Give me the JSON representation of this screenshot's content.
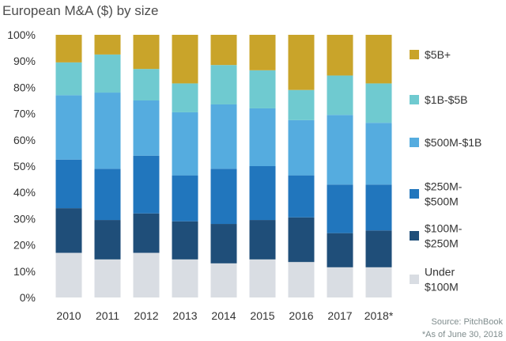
{
  "chart_data": {
    "type": "bar",
    "stacked": true,
    "title": "European M&A ($) by size",
    "xlabel": "",
    "ylabel": "",
    "ylim": [
      0,
      100
    ],
    "y_ticks": [
      "0%",
      "10%",
      "20%",
      "30%",
      "40%",
      "50%",
      "60%",
      "70%",
      "80%",
      "90%",
      "100%"
    ],
    "categories": [
      "2010",
      "2011",
      "2012",
      "2013",
      "2014",
      "2015",
      "2016",
      "2017",
      "2018*"
    ],
    "series": [
      {
        "name": "Under $100M",
        "legend_lines": [
          "Under",
          "$100M"
        ],
        "color": "#d9dde3",
        "values": [
          17,
          14.5,
          17,
          14.5,
          13,
          14.5,
          13.5,
          11.5,
          11.5
        ]
      },
      {
        "name": "$100M-$250M",
        "legend_lines": [
          "$100M-",
          "$250M"
        ],
        "color": "#1f4e79",
        "values": [
          17,
          15,
          15,
          14.5,
          15,
          15,
          17,
          13,
          14
        ]
      },
      {
        "name": "$250M-$500M",
        "legend_lines": [
          "$250M-",
          "$500M"
        ],
        "color": "#2176bd",
        "values": [
          18.5,
          19.5,
          22,
          17.5,
          21,
          20.5,
          16,
          18.5,
          17.5
        ]
      },
      {
        "name": "$500M-$1B",
        "legend_lines": [
          "$500M-$1B"
        ],
        "color": "#55acdf",
        "values": [
          24.5,
          29,
          21,
          24,
          24.5,
          22,
          21,
          26.5,
          23.5
        ]
      },
      {
        "name": "$1B-$5B",
        "legend_lines": [
          "$1B-$5B"
        ],
        "color": "#6fcad0",
        "values": [
          12.5,
          14.5,
          12,
          11,
          15,
          14.5,
          11.5,
          15,
          15
        ]
      },
      {
        "name": "$5B+",
        "legend_lines": [
          "$5B+"
        ],
        "color": "#c9a42a",
        "values": [
          10.5,
          7.5,
          13,
          18.5,
          11.5,
          13.5,
          21,
          15.5,
          18.5
        ]
      }
    ],
    "grid": false,
    "legend_position": "right"
  },
  "footer": {
    "source": "Source: PitchBook",
    "note": "*As of June 30, 2018"
  }
}
